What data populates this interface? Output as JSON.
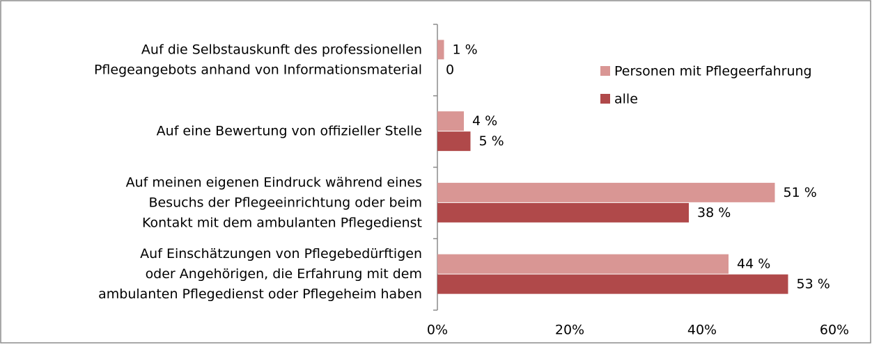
{
  "chart_data": {
    "type": "barh",
    "categories": [
      [
        "Auf die Selbstauskunft des professionellen",
        "Pflegeangebots anhand von Informationsmaterial"
      ],
      [
        "Auf eine Bewertung von offizieller Stelle"
      ],
      [
        "Auf meinen eigenen Eindruck während eines",
        "Besuchs der Pflegeeinrichtung oder beim",
        "Kontakt mit dem ambulanten Pflegedienst"
      ],
      [
        "Auf Einschätzungen von Pflegebedürftigen",
        "oder Angehörigen, die Erfahrung mit dem",
        "ambulanten Pflegedienst oder Pflegeheim haben"
      ]
    ],
    "series": [
      {
        "name": "Personen mit Pflegeerfahrung",
        "color": "#d99694",
        "values": [
          1,
          4,
          51,
          44
        ],
        "value_labels": [
          "1 %",
          "4 %",
          "51 %",
          "44 %"
        ]
      },
      {
        "name": "alle",
        "color": "#b0494a",
        "values": [
          0,
          5,
          38,
          53
        ],
        "value_labels": [
          "0",
          "5 %",
          "38 %",
          "53 %"
        ]
      }
    ],
    "xlim": [
      0,
      60
    ],
    "xticks": [
      {
        "value": 0,
        "label": "0%"
      },
      {
        "value": 20,
        "label": "20%"
      },
      {
        "value": 40,
        "label": "40%"
      },
      {
        "value": 60,
        "label": "60%"
      }
    ],
    "legend": "top-right"
  }
}
